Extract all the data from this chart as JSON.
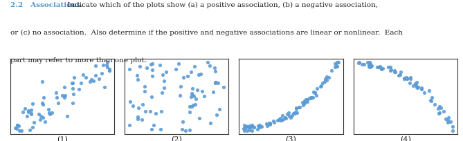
{
  "title_number": "2.2",
  "title_word": "Associations.",
  "line1_rest": " Indicate which of the plots show (a) a positive association, (b) a negative association,",
  "line2": "or (c) no association.  Also determine if the positive and negative associations are linear or nonlinear.  Each",
  "line3": "part may refer to more than one plot.",
  "dot_color": "#5b9bd5",
  "dot_size": 14,
  "dot_alpha": 0.9,
  "plot_labels": [
    "(1)",
    "(2)",
    "(3)",
    "(4)"
  ],
  "background_color": "#ffffff",
  "title_color": "#4e9ac7",
  "text_color": "#231f20",
  "text_fontsize": 7.5,
  "label_fontsize": 8.0
}
